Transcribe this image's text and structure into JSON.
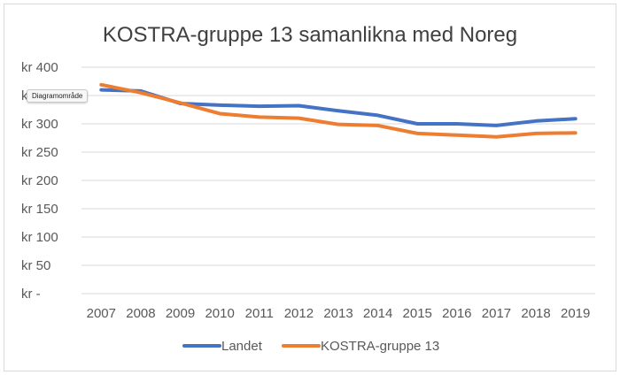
{
  "chart_data": {
    "type": "line",
    "title": "KOSTRA-gruppe 13 samanlikna med Noreg",
    "xlabel": "",
    "ylabel": "",
    "x": [
      "2007",
      "2008",
      "2009",
      "2010",
      "2011",
      "2012",
      "2013",
      "2014",
      "2015",
      "2016",
      "2017",
      "2018",
      "2019"
    ],
    "ylim": [
      0,
      400
    ],
    "yticks": [
      "kr -",
      "kr 50",
      "kr 100",
      "kr 150",
      "kr 200",
      "kr 250",
      "kr 300",
      "kr 350",
      "kr 400"
    ],
    "grid": true,
    "legend": "bottom",
    "series": [
      {
        "name": "Landet",
        "color": "#4472c4",
        "values": [
          360,
          358,
          336,
          333,
          331,
          332,
          323,
          315,
          300,
          300,
          297,
          305,
          309
        ]
      },
      {
        "name": "KOSTRA-gruppe 13",
        "color": "#ed7d31",
        "values": [
          369,
          355,
          337,
          318,
          312,
          310,
          299,
          297,
          283,
          280,
          277,
          283,
          284
        ]
      }
    ]
  },
  "tooltip": "Diagramområde"
}
